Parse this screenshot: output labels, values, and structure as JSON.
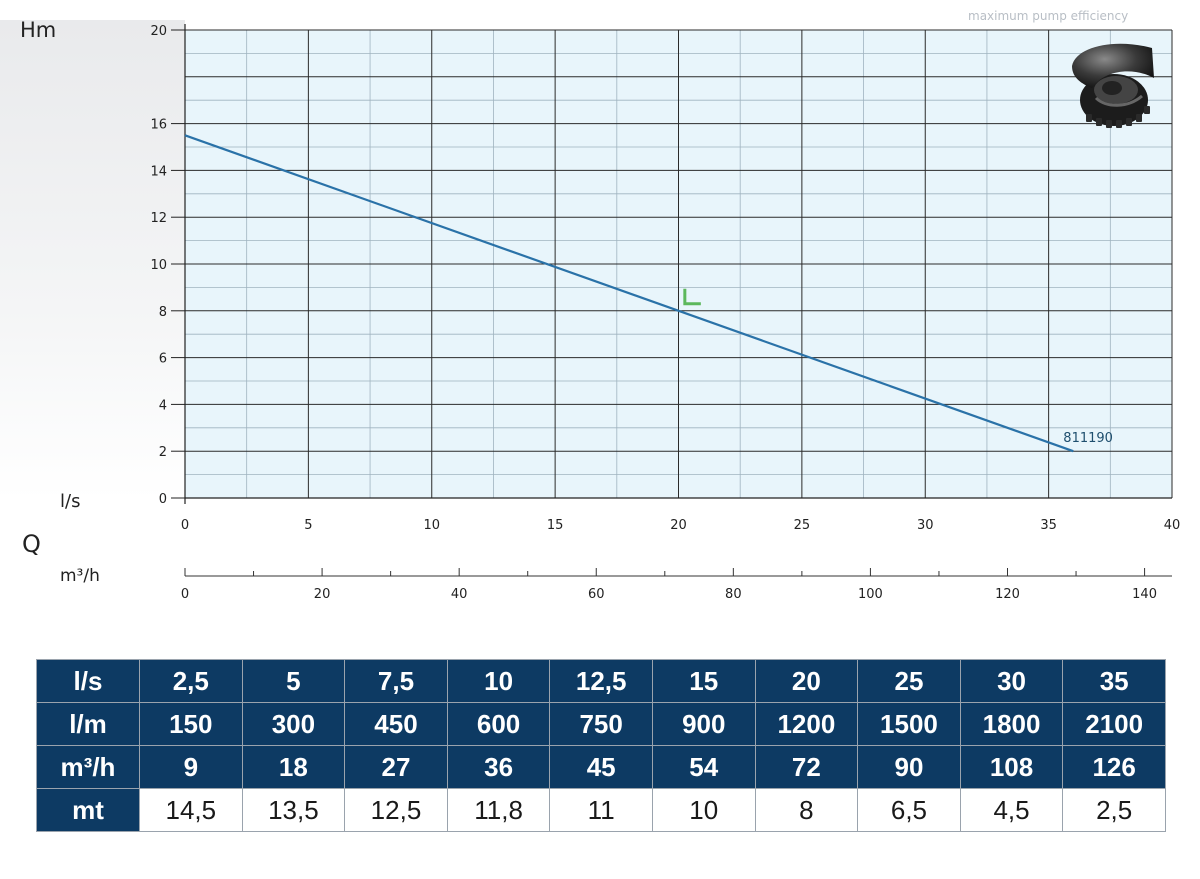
{
  "labels": {
    "y_axis_title": "Hm",
    "x_unit_primary": "l/s",
    "q_label": "Q",
    "x_unit_secondary": "m³/h",
    "corner_caption": "maximum pump efficiency"
  },
  "chart_data": {
    "type": "line",
    "xlabel": "l/s",
    "ylabel": "Hm",
    "xlim": [
      0,
      40
    ],
    "ylim": [
      0,
      20
    ],
    "grid": true,
    "x_ticks": [
      0,
      5,
      10,
      15,
      20,
      25,
      30,
      35,
      40
    ],
    "y_ticks": [
      0,
      2,
      4,
      6,
      8,
      10,
      12,
      14,
      16,
      20
    ],
    "secondary_x_axis": {
      "unit": "m³/h",
      "lim": [
        0,
        144
      ],
      "ticks": [
        0,
        20,
        40,
        60,
        80,
        100,
        120,
        140
      ]
    },
    "series": [
      {
        "name": "811190",
        "x": [
          0,
          36
        ],
        "y": [
          15.5,
          2
        ],
        "color": "#2a72a8"
      }
    ],
    "best_efficiency_marker": {
      "x": 20.5,
      "y": 8.3,
      "color": "#5cb85c"
    }
  },
  "table": {
    "rows": [
      {
        "label": "l/s",
        "values": [
          "2,5",
          "5",
          "7,5",
          "10",
          "12,5",
          "15",
          "20",
          "25",
          "30",
          "35"
        ]
      },
      {
        "label": "l/m",
        "values": [
          "150",
          "300",
          "450",
          "600",
          "750",
          "900",
          "1200",
          "1500",
          "1800",
          "2100"
        ]
      },
      {
        "label": "m³/h",
        "values": [
          "9",
          "18",
          "27",
          "36",
          "45",
          "54",
          "72",
          "90",
          "108",
          "126"
        ]
      },
      {
        "label": "mt",
        "values": [
          "14,5",
          "13,5",
          "12,5",
          "11,8",
          "11",
          "10",
          "8",
          "6,5",
          "4,5",
          "2,5"
        ]
      }
    ]
  },
  "colors": {
    "plot_background": "#e8f5fb",
    "grid_line": "#2b2b2b",
    "table_header": "#0d3a63"
  },
  "images": {
    "pump_impeller": "impeller-icon"
  }
}
